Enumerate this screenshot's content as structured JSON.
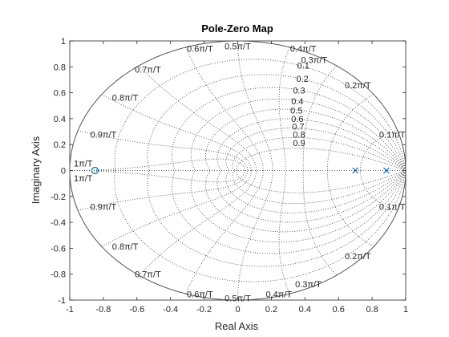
{
  "chart_data": {
    "type": "scatter",
    "title": "Pole-Zero Map",
    "xlabel": "Real Axis",
    "ylabel": "Imaginary Axis",
    "xlim": [
      -1,
      1
    ],
    "ylim": [
      -1,
      1
    ],
    "x_ticks": [
      "-1",
      "-0.8",
      "-0.6",
      "-0.4",
      "-0.2",
      "0",
      "0.2",
      "0.4",
      "0.6",
      "0.8",
      "1"
    ],
    "y_ticks": [
      "1",
      "0.8",
      "0.6",
      "0.4",
      "0.2",
      "0",
      "-0.2",
      "-0.4",
      "-0.6",
      "-0.8",
      "-1"
    ],
    "x_tick_values": [
      -1,
      -0.8,
      -0.6,
      -0.4,
      -0.2,
      0,
      0.2,
      0.4,
      0.6,
      0.8,
      1
    ],
    "y_tick_values": [
      1,
      0.8,
      0.6,
      0.4,
      0.2,
      0,
      -0.2,
      -0.4,
      -0.6,
      -0.8,
      -1
    ],
    "grid": true,
    "grid_style": "z-plane damping and natural-frequency lines (dotted)",
    "unit_circle": true,
    "poles": [
      {
        "re": 0.7,
        "im": 0
      },
      {
        "re": 0.885,
        "im": 0
      }
    ],
    "zeros": [
      {
        "re": -0.85,
        "im": 0
      }
    ],
    "damping_values": [
      0.1,
      0.2,
      0.3,
      0.4,
      0.5,
      0.6,
      0.7,
      0.8,
      0.9
    ],
    "damping_labels": [
      "0.1",
      "0.2",
      "0.3",
      "0.4",
      "0.5",
      "0.6",
      "0.7",
      "0.8",
      "0.9"
    ],
    "wn_values": [
      0.1,
      0.2,
      0.3,
      0.4,
      0.5,
      0.6,
      0.7,
      0.8,
      0.9,
      1.0
    ],
    "wn_labels": [
      "0.1π/T",
      "0.2π/T",
      "0.3π/T",
      "0.4π/T",
      "0.5π/T",
      "0.6π/T",
      "0.7π/T",
      "0.8π/T",
      "0.9π/T",
      "1π/T"
    ],
    "marker_color": "#0072bd",
    "grid_color": "#3a3a3a"
  }
}
